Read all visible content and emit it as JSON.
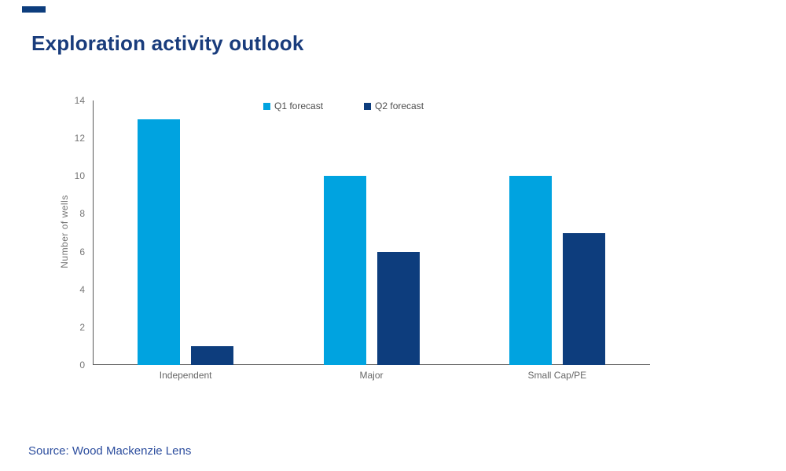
{
  "page": {
    "title": "Exploration activity outlook",
    "source": "Source: Wood Mackenzie Lens"
  },
  "colors": {
    "accent_dash": "#0D3D7D",
    "title_text": "#193C7C",
    "source_text": "#2D4E9E",
    "axis_line": "#595959",
    "tick_text": "#767676",
    "category_text": "#666666",
    "legend_text": "#4D4D4D",
    "q1_bar": "#00A3E0",
    "q2_bar": "#0D3D7D"
  },
  "chart_data": {
    "type": "bar",
    "title": "Exploration activity outlook",
    "categories": [
      "Independent",
      "Major",
      "Small Cap/PE"
    ],
    "series": [
      {
        "name": "Q1 forecast",
        "color": "#00A3E0",
        "values": [
          13,
          10,
          10
        ]
      },
      {
        "name": "Q2 forecast",
        "color": "#0D3D7D",
        "values": [
          1,
          6,
          7
        ]
      }
    ],
    "xlabel": "",
    "ylabel": "Number of wells",
    "ylim": [
      0,
      14
    ],
    "yticks": [
      0,
      2,
      4,
      6,
      8,
      10,
      12,
      14
    ],
    "grid": false,
    "legend_position": "top-center"
  }
}
